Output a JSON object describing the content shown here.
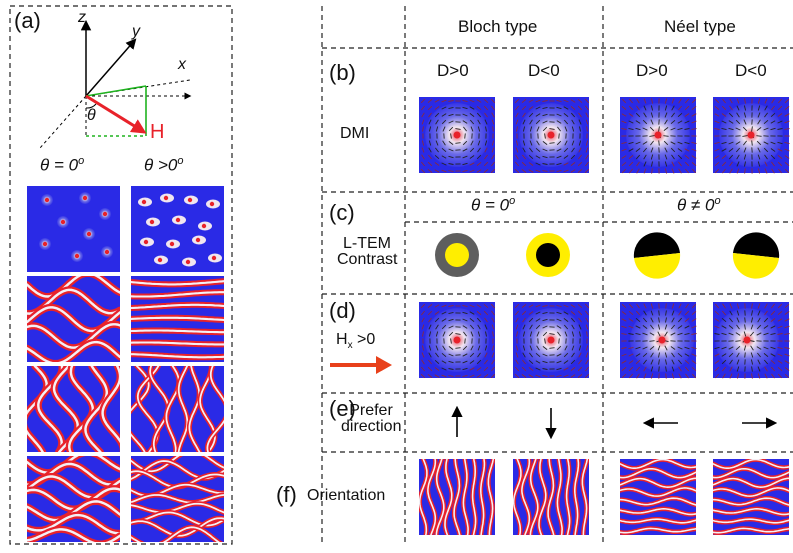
{
  "panel_labels": {
    "a": "(a)",
    "b": "(b)",
    "c": "(c)",
    "d": "(d)",
    "e": "(e)",
    "f": "(f)"
  },
  "axes": {
    "z": "z",
    "y": "y",
    "x": "x",
    "theta": "θ",
    "field": "H"
  },
  "left_columns": {
    "theta_zero": {
      "sym": "θ = 0",
      "sup": "o"
    },
    "theta_pos": {
      "sym": "θ >0",
      "sup": "o"
    }
  },
  "column_headers": {
    "bloch": "Bloch type",
    "neel": "Néel type"
  },
  "dmi_signs": {
    "pos": "D>0",
    "neg": "D<0"
  },
  "row_labels": {
    "dmi": "DMI",
    "ltem_line1": "L-TEM",
    "ltem_line2": "Contrast",
    "hx_main": "H",
    "hx_sub": "x",
    "hx_tail": " >0",
    "prefer_line1": "Prefer",
    "prefer_line2": "direction",
    "orientation": "Orientation"
  },
  "theta_headers": {
    "bloch": {
      "sym": "θ = 0",
      "sup": "o"
    },
    "neel": {
      "sym": "θ ≠ 0",
      "sup": "o"
    }
  },
  "colors": {
    "blue": "#2a2ae6",
    "red": "#e8222a",
    "stripe_white": "#f4f0f6",
    "yellow": "#ffee00",
    "gray": "#5e5e5e",
    "arrow_red": "#e8401a",
    "field_line": "#1fb31f"
  }
}
